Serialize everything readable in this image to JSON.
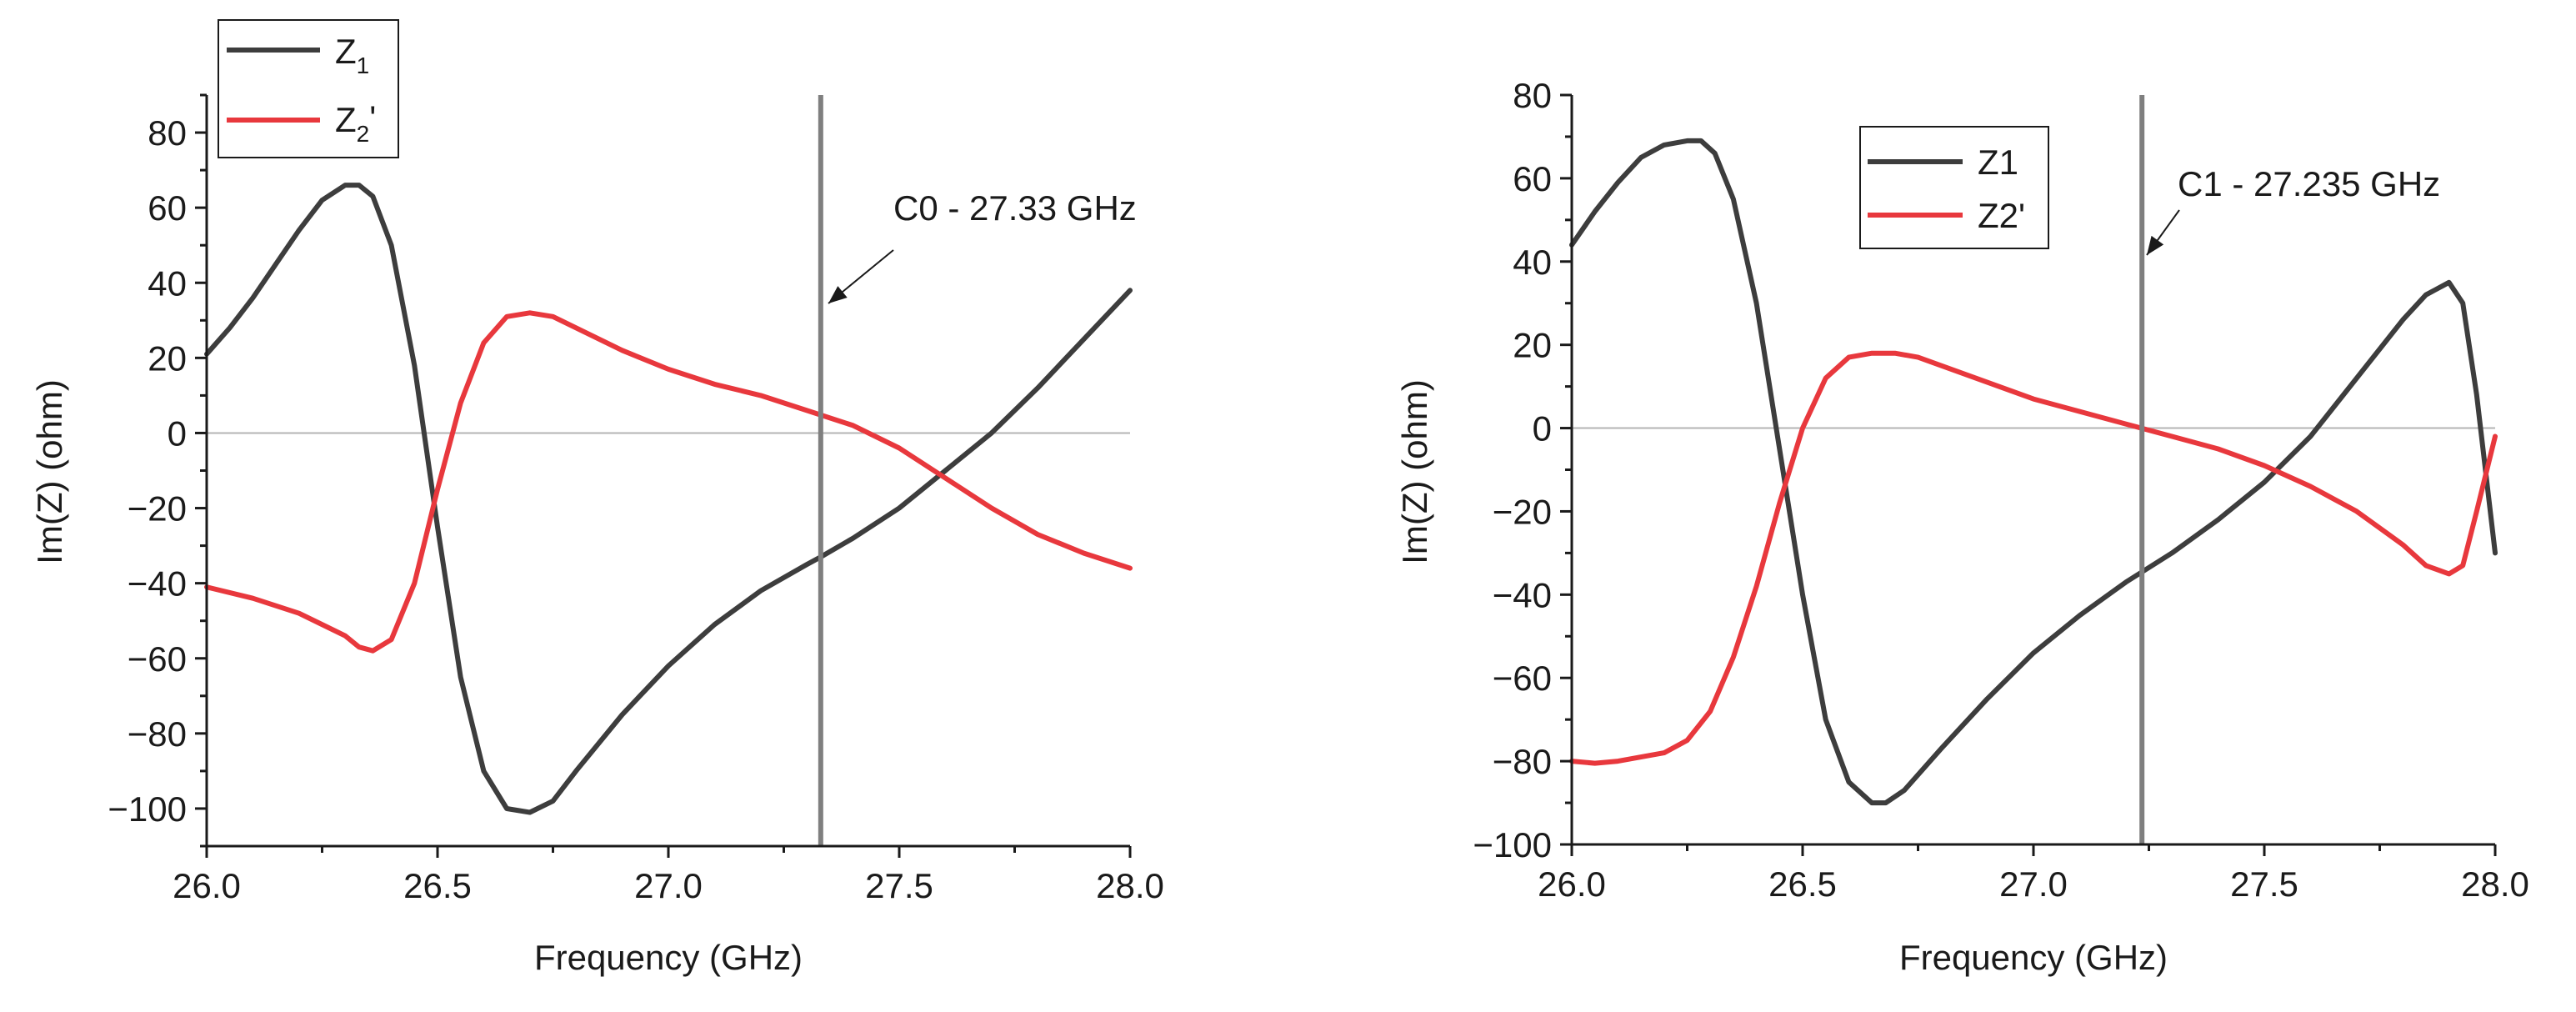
{
  "colors": {
    "series_dark": "#3d3d3d",
    "series_red": "#e8383d",
    "marker_line": "#7f7f7f",
    "zero_line": "#b4b4b4",
    "axis": "#1a1a1a"
  },
  "chart_data": [
    {
      "type": "line",
      "xlabel": "Frequency (GHz)",
      "ylabel": "Im(Z) (ohm)",
      "xlim": [
        26.0,
        28.0
      ],
      "ylim": [
        -110,
        90
      ],
      "xticks": [
        "26.0",
        "26.5",
        "27.0",
        "27.5",
        "28.0"
      ],
      "xtick_values": [
        26.0,
        26.5,
        27.0,
        27.5,
        28.0
      ],
      "yticks": [
        "−100",
        "−80",
        "−60",
        "−40",
        "−20",
        "0",
        "20",
        "40",
        "60",
        "80"
      ],
      "ytick_values": [
        -100,
        -80,
        -60,
        -40,
        -20,
        0,
        20,
        40,
        60,
        80
      ],
      "zero_line": 0,
      "legend_position": "top-left",
      "marker": {
        "x": 27.33,
        "label": "C0 - 27.33 GHz"
      },
      "series": [
        {
          "name": "Z1",
          "legend_main": "Z",
          "legend_sub": "1",
          "legend_suffix": "",
          "color": "#3d3d3d",
          "x": [
            26.0,
            26.05,
            26.1,
            26.15,
            26.2,
            26.25,
            26.3,
            26.33,
            26.36,
            26.4,
            26.45,
            26.5,
            26.55,
            26.6,
            26.65,
            26.7,
            26.75,
            26.8,
            26.9,
            27.0,
            27.1,
            27.2,
            27.3,
            27.33,
            27.4,
            27.5,
            27.6,
            27.7,
            27.8,
            27.9,
            28.0
          ],
          "y": [
            21,
            28,
            36,
            45,
            54,
            62,
            66,
            66,
            63,
            50,
            18,
            -25,
            -65,
            -90,
            -100,
            -101,
            -98,
            -90,
            -75,
            -62,
            -51,
            -42,
            -35,
            -33,
            -28,
            -20,
            -10,
            0,
            12,
            25,
            38
          ]
        },
        {
          "name": "Z2'",
          "legend_main": "Z",
          "legend_sub": "2",
          "legend_suffix": "'",
          "color": "#e8383d",
          "x": [
            26.0,
            26.1,
            26.2,
            26.3,
            26.33,
            26.36,
            26.4,
            26.45,
            26.5,
            26.55,
            26.6,
            26.65,
            26.7,
            26.75,
            26.8,
            26.9,
            27.0,
            27.1,
            27.2,
            27.3,
            27.4,
            27.5,
            27.6,
            27.7,
            27.8,
            27.9,
            28.0
          ],
          "y": [
            -41,
            -44,
            -48,
            -54,
            -57,
            -58,
            -55,
            -40,
            -15,
            8,
            24,
            31,
            32,
            31,
            28,
            22,
            17,
            13,
            10,
            6,
            2,
            -4,
            -12,
            -20,
            -27,
            -32,
            -36
          ]
        }
      ]
    },
    {
      "type": "line",
      "xlabel": "Frequency (GHz)",
      "ylabel": "Im(Z) (ohm)",
      "xlim": [
        26.0,
        28.0
      ],
      "ylim": [
        -100,
        80
      ],
      "xticks": [
        "26.0",
        "26.5",
        "27.0",
        "27.5",
        "28.0"
      ],
      "xtick_values": [
        26.0,
        26.5,
        27.0,
        27.5,
        28.0
      ],
      "yticks": [
        "−100",
        "−80",
        "−60",
        "−40",
        "−20",
        "0",
        "20",
        "40",
        "60",
        "80"
      ],
      "ytick_values": [
        -100,
        -80,
        -60,
        -40,
        -20,
        0,
        20,
        40,
        60,
        80
      ],
      "zero_line": 0,
      "legend_position": "top-center",
      "marker": {
        "x": 27.235,
        "label": "C1 - 27.235 GHz"
      },
      "series": [
        {
          "name": "Z1",
          "legend_main": "Z1",
          "legend_sub": "",
          "legend_suffix": "",
          "color": "#3d3d3d",
          "x": [
            26.0,
            26.05,
            26.1,
            26.15,
            26.2,
            26.25,
            26.28,
            26.31,
            26.35,
            26.4,
            26.45,
            26.5,
            26.55,
            26.6,
            26.65,
            26.68,
            26.72,
            26.8,
            26.9,
            27.0,
            27.1,
            27.2,
            27.3,
            27.4,
            27.5,
            27.6,
            27.7,
            27.8,
            27.85,
            27.9,
            27.93,
            27.96,
            28.0
          ],
          "y": [
            44,
            52,
            59,
            65,
            68,
            69,
            69,
            66,
            55,
            30,
            -5,
            -40,
            -70,
            -85,
            -90,
            -90,
            -87,
            -77,
            -65,
            -54,
            -45,
            -37,
            -30,
            -22,
            -13,
            -2,
            12,
            26,
            32,
            35,
            30,
            8,
            -30
          ]
        },
        {
          "name": "Z2'",
          "legend_main": "Z2'",
          "legend_sub": "",
          "legend_suffix": "",
          "color": "#e8383d",
          "x": [
            26.0,
            26.05,
            26.1,
            26.15,
            26.2,
            26.25,
            26.3,
            26.35,
            26.4,
            26.45,
            26.5,
            26.55,
            26.6,
            26.65,
            26.7,
            26.75,
            26.8,
            26.9,
            27.0,
            27.1,
            27.2,
            27.3,
            27.4,
            27.5,
            27.6,
            27.7,
            27.8,
            27.85,
            27.9,
            27.93,
            27.96,
            28.0
          ],
          "y": [
            -80,
            -80.5,
            -80,
            -79,
            -78,
            -75,
            -68,
            -55,
            -38,
            -18,
            0,
            12,
            17,
            18,
            18,
            17,
            15,
            11,
            7,
            4,
            1,
            -2,
            -5,
            -9,
            -14,
            -20,
            -28,
            -33,
            -35,
            -33,
            -20,
            -2
          ]
        }
      ]
    }
  ]
}
